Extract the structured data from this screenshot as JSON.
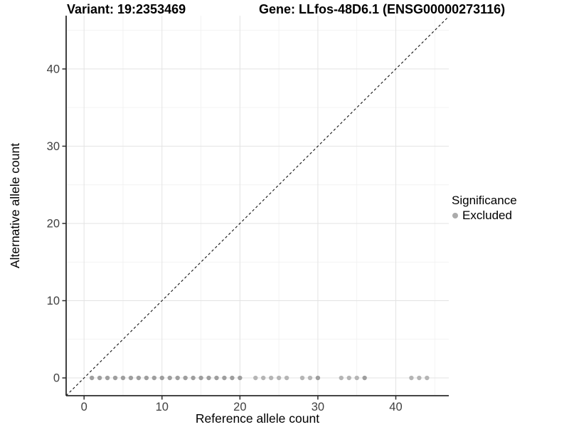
{
  "page": {
    "background": "#ffffff"
  },
  "header": {
    "title_left": "Variant: 19:2353469",
    "title_right": "Gene: LLfos-48D6.1 (ENSG00000273116)"
  },
  "chart_data": {
    "type": "scatter",
    "xlabel": "Reference allele count",
    "ylabel": "Alternative allele count",
    "x_ticks": [
      0,
      10,
      20,
      30,
      40
    ],
    "y_ticks": [
      0,
      10,
      20,
      30,
      40
    ],
    "x_minor_ticks": [
      5,
      15,
      25,
      35,
      45
    ],
    "y_minor_ticks": [
      5,
      15,
      25,
      35,
      45
    ],
    "xlim": [
      -2.3,
      46.8
    ],
    "ylim": [
      -2.3,
      46.9
    ],
    "grid": true,
    "grid_major_color": "#e3e3e3",
    "grid_minor_color": "#f0f0f0",
    "axis_line_color": "#2b2b2b",
    "tick_label_color": "#404040",
    "identity_line": {
      "style": "dashed",
      "slope": 1,
      "intercept": 0,
      "color": "#111111"
    },
    "legend": {
      "title": "Significance",
      "position": "right",
      "items": [
        {
          "label": "Excluded",
          "color": "#ababab",
          "marker": "circle"
        }
      ]
    },
    "series": [
      {
        "name": "Excluded",
        "marker_radius": 3.2,
        "points": [
          {
            "x": 1,
            "y": 0,
            "color": "#9e9e9e"
          },
          {
            "x": 2,
            "y": 0,
            "color": "#9e9e9e"
          },
          {
            "x": 3,
            "y": 0,
            "color": "#9e9e9e"
          },
          {
            "x": 4,
            "y": 0,
            "color": "#9e9e9e"
          },
          {
            "x": 5,
            "y": 0,
            "color": "#9e9e9e"
          },
          {
            "x": 6,
            "y": 0,
            "color": "#9e9e9e"
          },
          {
            "x": 7,
            "y": 0,
            "color": "#9e9e9e"
          },
          {
            "x": 8,
            "y": 0,
            "color": "#9e9e9e"
          },
          {
            "x": 9,
            "y": 0,
            "color": "#9e9e9e"
          },
          {
            "x": 10,
            "y": 0,
            "color": "#9e9e9e"
          },
          {
            "x": 11,
            "y": 0,
            "color": "#9e9e9e"
          },
          {
            "x": 12,
            "y": 0,
            "color": "#9e9e9e"
          },
          {
            "x": 13,
            "y": 0,
            "color": "#9e9e9e"
          },
          {
            "x": 14,
            "y": 0,
            "color": "#9e9e9e"
          },
          {
            "x": 15,
            "y": 0,
            "color": "#9e9e9e"
          },
          {
            "x": 16,
            "y": 0,
            "color": "#9e9e9e"
          },
          {
            "x": 17,
            "y": 0,
            "color": "#9e9e9e"
          },
          {
            "x": 18,
            "y": 0,
            "color": "#9e9e9e"
          },
          {
            "x": 19,
            "y": 0,
            "color": "#9e9e9e"
          },
          {
            "x": 20,
            "y": 0,
            "color": "#9e9e9e"
          },
          {
            "x": 22,
            "y": 0,
            "color": "#b5b5b5"
          },
          {
            "x": 23,
            "y": 0,
            "color": "#b5b5b5"
          },
          {
            "x": 24,
            "y": 0,
            "color": "#b5b5b5"
          },
          {
            "x": 25,
            "y": 0,
            "color": "#b5b5b5"
          },
          {
            "x": 26,
            "y": 0,
            "color": "#b5b5b5"
          },
          {
            "x": 28,
            "y": 0,
            "color": "#b5b5b5"
          },
          {
            "x": 29,
            "y": 0,
            "color": "#b5b5b5"
          },
          {
            "x": 30,
            "y": 0,
            "color": "#9e9e9e"
          },
          {
            "x": 33,
            "y": 0,
            "color": "#b5b5b5"
          },
          {
            "x": 34,
            "y": 0,
            "color": "#b5b5b5"
          },
          {
            "x": 35,
            "y": 0,
            "color": "#b5b5b5"
          },
          {
            "x": 36,
            "y": 0,
            "color": "#9e9e9e"
          },
          {
            "x": 42,
            "y": 0,
            "color": "#b5b5b5"
          },
          {
            "x": 43,
            "y": 0,
            "color": "#b5b5b5"
          },
          {
            "x": 44,
            "y": 0,
            "color": "#b5b5b5"
          }
        ]
      }
    ]
  }
}
